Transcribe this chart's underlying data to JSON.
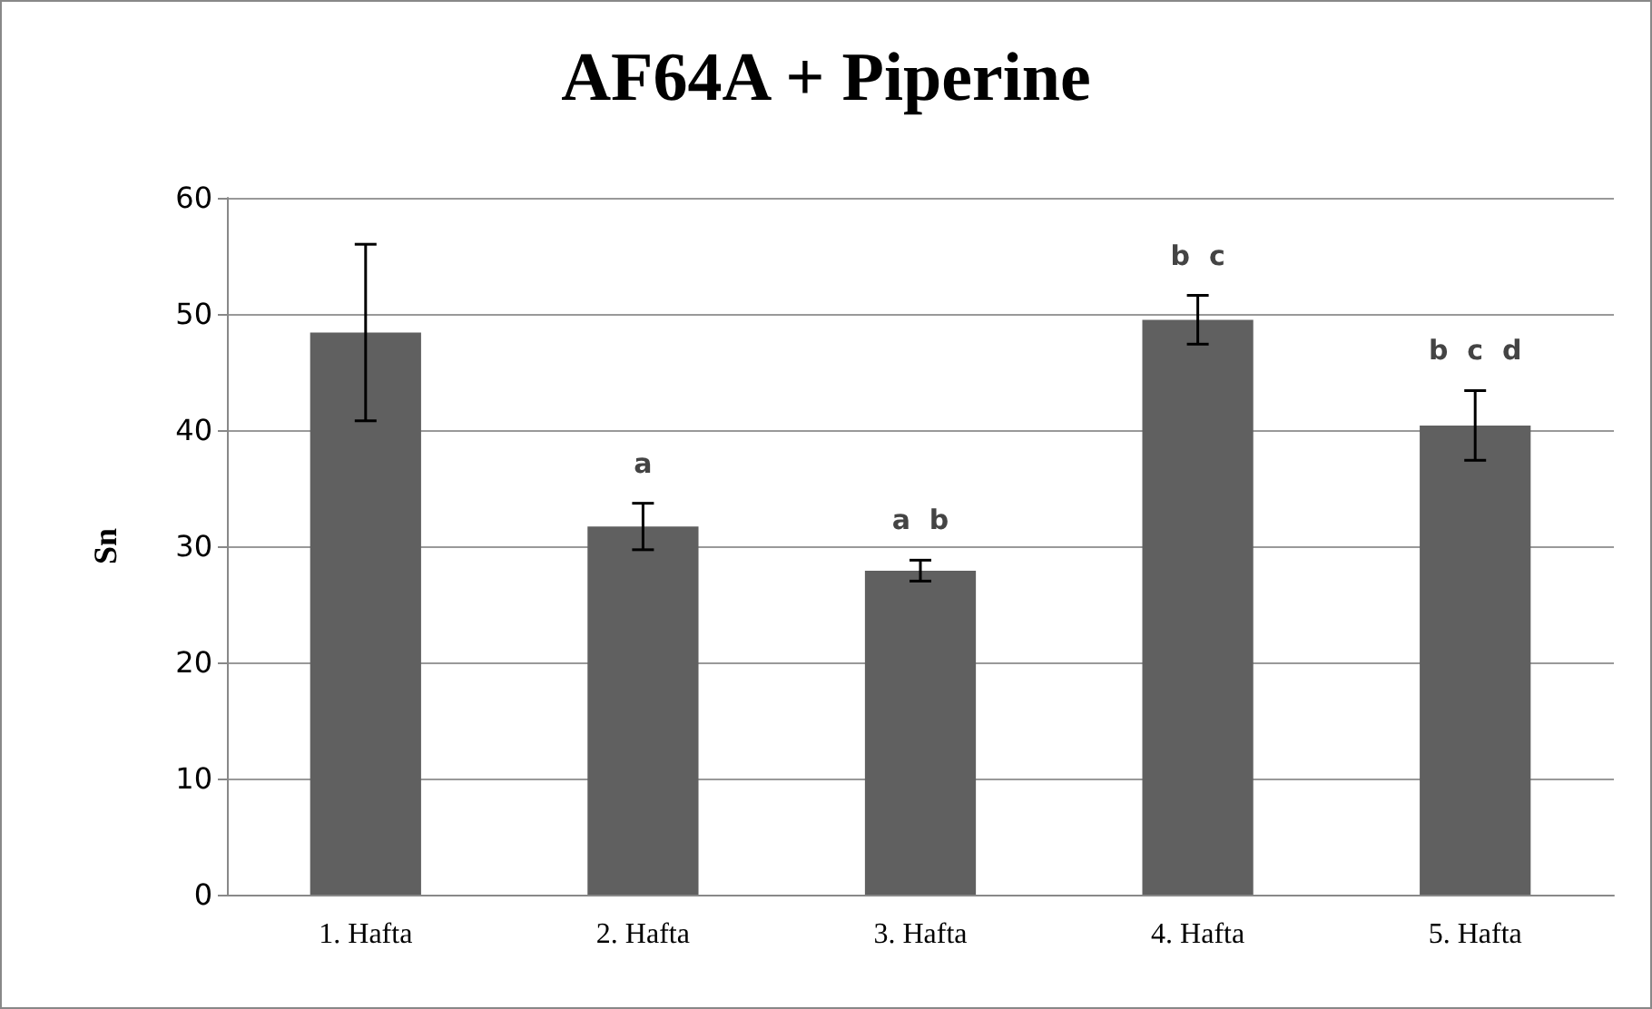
{
  "chart_data": {
    "type": "bar",
    "title": "AF64A + Piperine",
    "ylabel": "Sn",
    "categories": [
      "1. Hafta",
      "2. Hafta",
      "3. Hafta",
      "4. Hafta",
      "5. Hafta"
    ],
    "values": [
      48.4,
      31.7,
      27.9,
      49.5,
      40.4
    ],
    "errors": [
      7.6,
      2,
      0.9,
      2.1,
      3
    ],
    "color": "#606060",
    "ylim": [
      0,
      60
    ],
    "yticks": [
      0,
      10,
      20,
      30,
      40,
      50,
      60
    ],
    "grid": "y",
    "annotations": [
      {
        "text": "a",
        "x": "2. Hafta",
        "y": 31.7
      },
      {
        "text": "a  b",
        "x": "3. Hafta",
        "y": 27.9
      },
      {
        "text": "b  c",
        "x": "4. Hafta",
        "y": 49.5
      },
      {
        "text": "b  c  d",
        "x": "5. Hafta",
        "y": 40.4
      }
    ]
  }
}
